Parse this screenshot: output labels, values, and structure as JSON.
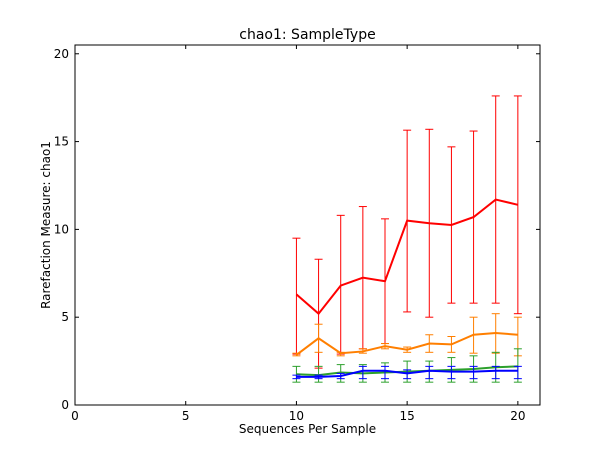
{
  "chart_data": {
    "type": "line",
    "title": "chao1: SampleType",
    "xlabel": "Sequences Per Sample",
    "ylabel": "Rarefaction Measure: chao1",
    "xlim": [
      0,
      21
    ],
    "ylim": [
      0,
      20.5
    ],
    "xticks": [
      0,
      5,
      10,
      15,
      20
    ],
    "yticks": [
      0,
      5,
      10,
      15,
      20
    ],
    "grid": false,
    "legend": "none",
    "x": [
      10,
      11,
      12,
      13,
      14,
      15,
      16,
      17,
      18,
      19,
      20
    ],
    "series": [
      {
        "color": "#ff0000",
        "values": [
          6.3,
          5.2,
          6.8,
          7.25,
          7.05,
          10.5,
          10.35,
          10.25,
          10.7,
          11.7,
          11.4
        ],
        "err_low": [
          2.9,
          2.1,
          2.9,
          3.2,
          3.5,
          5.3,
          5.0,
          5.8,
          5.8,
          5.8,
          5.2
        ],
        "err_high": [
          9.5,
          8.3,
          10.8,
          11.3,
          10.6,
          15.65,
          15.7,
          14.7,
          15.6,
          17.6,
          17.6
        ]
      },
      {
        "color": "#ff7f00",
        "values": [
          2.85,
          3.8,
          2.95,
          3.05,
          3.35,
          3.15,
          3.5,
          3.45,
          4.0,
          4.1,
          4.0
        ],
        "err_low": [
          2.8,
          3.0,
          2.8,
          2.95,
          3.2,
          3.0,
          3.0,
          3.0,
          2.95,
          2.95,
          2.8
        ],
        "err_high": [
          2.95,
          4.6,
          3.0,
          3.2,
          3.5,
          3.3,
          4.0,
          3.9,
          5.0,
          5.2,
          5.0
        ]
      },
      {
        "color": "#2ca02c",
        "values": [
          1.75,
          1.7,
          1.85,
          1.8,
          1.85,
          1.9,
          1.95,
          2.0,
          2.05,
          2.15,
          2.2
        ],
        "err_low": [
          1.3,
          1.3,
          1.3,
          1.3,
          1.3,
          1.3,
          1.3,
          1.3,
          1.3,
          1.3,
          1.3
        ],
        "err_high": [
          2.2,
          2.2,
          2.3,
          2.3,
          2.4,
          2.5,
          2.5,
          2.7,
          2.8,
          3.0,
          3.2
        ]
      },
      {
        "color": "#0000ff",
        "values": [
          1.6,
          1.6,
          1.65,
          1.95,
          1.95,
          1.8,
          1.95,
          1.9,
          1.9,
          1.95,
          1.95
        ],
        "err_low": [
          1.5,
          1.5,
          1.5,
          1.5,
          1.5,
          1.5,
          1.5,
          1.5,
          1.5,
          1.5,
          1.5
        ],
        "err_high": [
          1.7,
          1.7,
          1.8,
          2.2,
          2.2,
          2.0,
          2.2,
          2.2,
          2.2,
          2.2,
          2.2
        ]
      }
    ]
  }
}
